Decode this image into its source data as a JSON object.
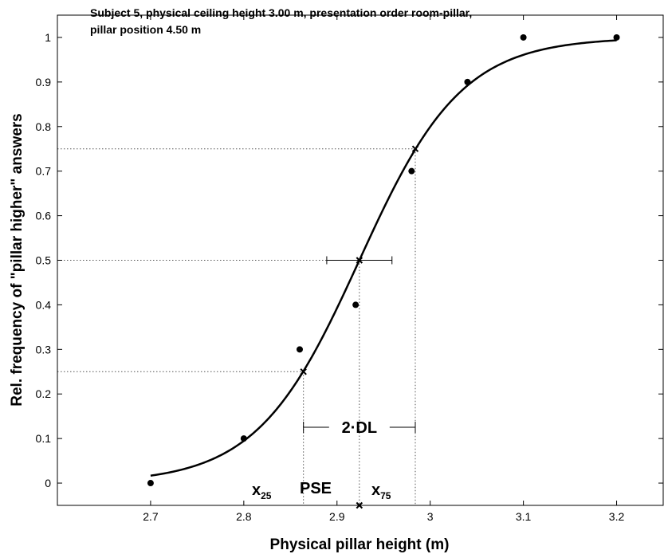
{
  "chart_data": {
    "type": "scatter",
    "title_lines": [
      "Subject 5, physical ceiling height 3.00 m, presentation order room-pillar,",
      "pillar position 4.50 m"
    ],
    "xlabel": "Physical pillar height (m)",
    "ylabel": "Rel. frequency of  \"pillar higher\" answers",
    "xlim": [
      2.6,
      3.25
    ],
    "ylim": [
      -0.05,
      1.05
    ],
    "x_ticks": [
      2.7,
      2.8,
      2.9,
      3.0,
      3.1,
      3.2
    ],
    "x_tick_labels": [
      "2.7",
      "2.8",
      "2.9",
      "3",
      "3.1",
      "3.2"
    ],
    "y_ticks": [
      0,
      0.1,
      0.2,
      0.3,
      0.4,
      0.5,
      0.6,
      0.7,
      0.8,
      0.9,
      1.0
    ],
    "y_tick_labels": [
      "0",
      "0.1",
      "0.2",
      "0.3",
      "0.4",
      "0.5",
      "0.6",
      "0.7",
      "0.8",
      "0.9",
      "1"
    ],
    "grid": false,
    "points": [
      {
        "x": 2.7,
        "y": 0.0
      },
      {
        "x": 2.8,
        "y": 0.1
      },
      {
        "x": 2.86,
        "y": 0.3
      },
      {
        "x": 2.92,
        "y": 0.4
      },
      {
        "x": 2.98,
        "y": 0.7
      },
      {
        "x": 3.04,
        "y": 0.9
      },
      {
        "x": 3.1,
        "y": 1.0
      },
      {
        "x": 3.2,
        "y": 1.0
      }
    ],
    "fit": {
      "x_start": 2.7,
      "x_end": 3.2,
      "pse": 2.924,
      "slope": 18.2
    },
    "x25": 2.864,
    "x75": 2.984,
    "pse": 2.924,
    "dl_errorbar": {
      "y": 0.5,
      "x_low": 2.889,
      "x_high": 2.959
    },
    "annotations": {
      "x25_main": "x",
      "x25_sub": "25",
      "pse_label": "PSE",
      "x75_main": "x",
      "x75_sub": "75",
      "dl_label": "2·DL"
    }
  }
}
